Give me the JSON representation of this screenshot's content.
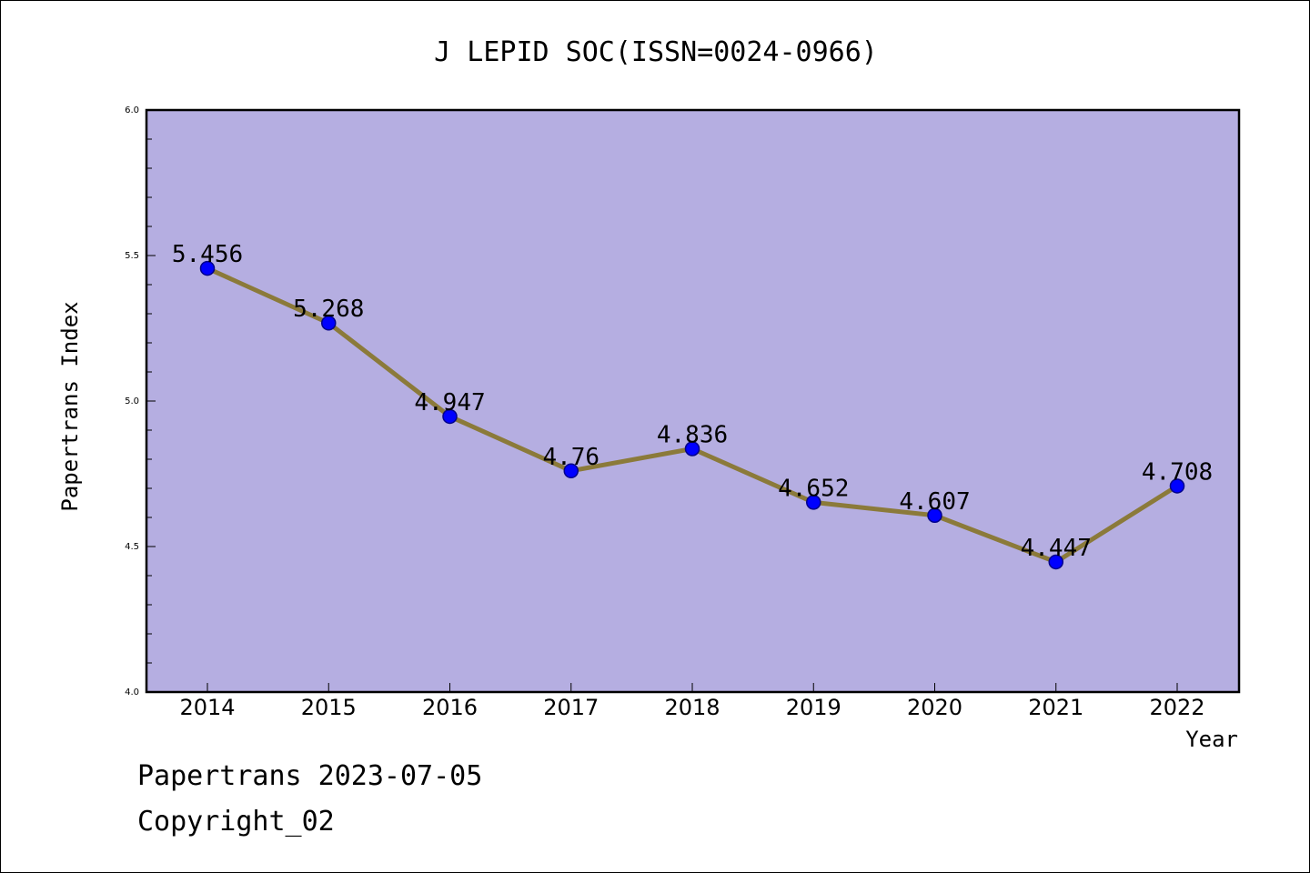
{
  "chart_data": {
    "type": "line",
    "title": "J LEPID SOC(ISSN=0024-0966)",
    "xlabel": "Year",
    "ylabel": "Papertrans Index",
    "categories": [
      "2014",
      "2015",
      "2016",
      "2017",
      "2018",
      "2019",
      "2020",
      "2021",
      "2022"
    ],
    "series": [
      {
        "values": [
          5.456,
          5.268,
          4.947,
          4.76,
          4.836,
          4.652,
          4.607,
          4.447,
          4.708
        ]
      }
    ],
    "data_labels": [
      "5.456",
      "5.268",
      "4.947",
      "4.76",
      "4.836",
      "4.652",
      "4.607",
      "4.447",
      "4.708"
    ],
    "ylim": [
      4.0,
      6.0
    ],
    "yticks": [
      "4.0",
      "4.5",
      "5.0",
      "5.5",
      "6.0"
    ],
    "grid": false,
    "colors": {
      "plot_background": "#b5aee1",
      "line": "#8b7a3a",
      "marker_fill": "#0000ff",
      "marker_edge": "#00008b"
    }
  },
  "footer": {
    "source": "Papertrans 2023-07-05",
    "copyright": "Copyright_02"
  }
}
